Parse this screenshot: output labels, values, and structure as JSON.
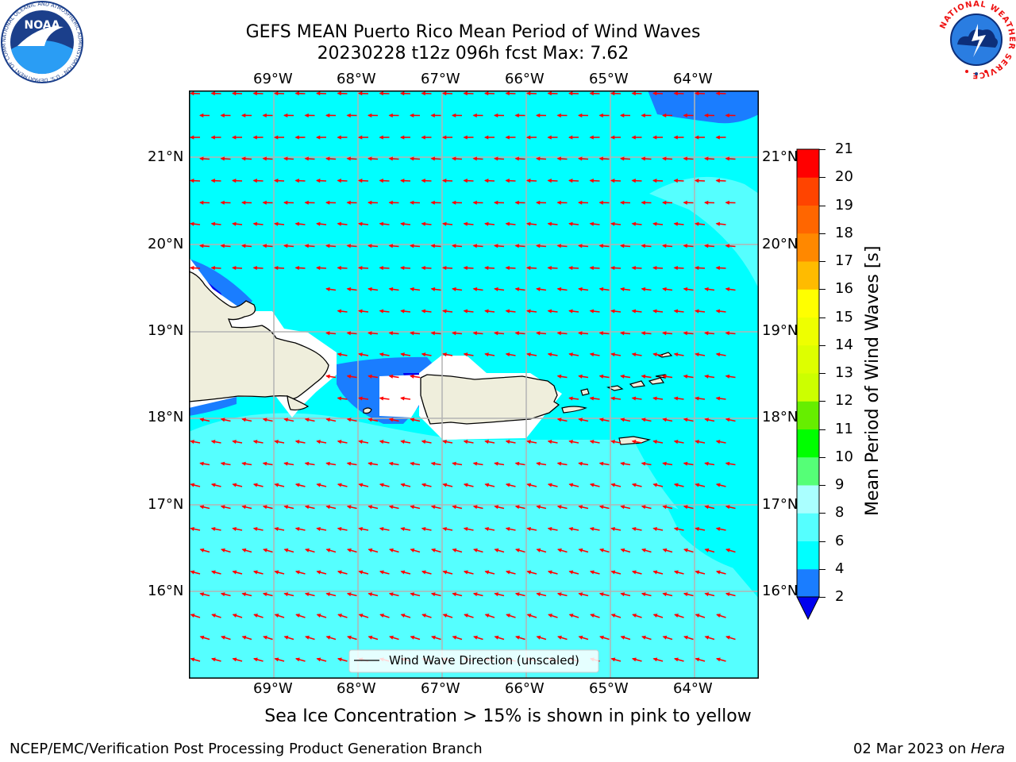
{
  "title": {
    "line1": "GEFS MEAN Puerto Rico Mean Period of Wind Waves",
    "line2": "20230228 t12z 096h fcst   Max: 7.62"
  },
  "map": {
    "lon_labels": [
      "69°W",
      "68°W",
      "67°W",
      "66°W",
      "65°W",
      "64°W"
    ],
    "lat_labels": [
      "21°N",
      "20°N",
      "19°N",
      "18°N",
      "17°N",
      "16°N"
    ],
    "legend_label": "Wind Wave Direction (unscaled)",
    "colors": {
      "ocean_main": "#00ffff",
      "ocean_light": "#55ffff",
      "ocean_dark": "#1a7dff",
      "ocean_deep": "#0000ee",
      "land": "#efeedc",
      "arrow": "#ff0000",
      "grid": "#b4b4b4"
    }
  },
  "colorbar": {
    "label": "Mean Period of Wind Waves [s]",
    "ticks": [
      "2",
      "4",
      "6",
      "8",
      "9",
      "10",
      "11",
      "12",
      "13",
      "14",
      "15",
      "16",
      "17",
      "18",
      "19",
      "20",
      "21"
    ],
    "bins": [
      {
        "from": 2,
        "to": 4,
        "color": "#1a7dff"
      },
      {
        "from": 4,
        "to": 6,
        "color": "#00ffff"
      },
      {
        "from": 6,
        "to": 8,
        "color": "#55ffff"
      },
      {
        "from": 8,
        "to": 9,
        "color": "#aaffff"
      },
      {
        "from": 9,
        "to": 10,
        "color": "#55ff77"
      },
      {
        "from": 10,
        "to": 11,
        "color": "#00ff00"
      },
      {
        "from": 11,
        "to": 12,
        "color": "#66ee00"
      },
      {
        "from": 12,
        "to": 13,
        "color": "#ccff00"
      },
      {
        "from": 13,
        "to": 14,
        "color": "#ddff00"
      },
      {
        "from": 14,
        "to": 15,
        "color": "#eeff00"
      },
      {
        "from": 15,
        "to": 16,
        "color": "#ffff00"
      },
      {
        "from": 16,
        "to": 17,
        "color": "#ffbb00"
      },
      {
        "from": 17,
        "to": 18,
        "color": "#ff8800"
      },
      {
        "from": 18,
        "to": 19,
        "color": "#ff6600"
      },
      {
        "from": 19,
        "to": 20,
        "color": "#ff4400"
      },
      {
        "from": 20,
        "to": 21,
        "color": "#ff0000"
      }
    ],
    "underflow_color": "#0000ee"
  },
  "caption": "Sea Ice Concentration > 15% is shown in pink to yellow",
  "footer": {
    "left": "NCEP/EMC/Verification Post Processing Product Generation Branch",
    "date": "02 Mar 2023 on ",
    "machine": "Hera"
  },
  "logos": {
    "noaa_text": "NOAA",
    "noaa_ring": "NATIONAL OCEANIC AND ATMOSPHERIC ADMINISTRATION · U.S. DEPARTMENT OF COMMERCE ·",
    "nws_ring": "NATIONAL WEATHER SERVICE"
  }
}
